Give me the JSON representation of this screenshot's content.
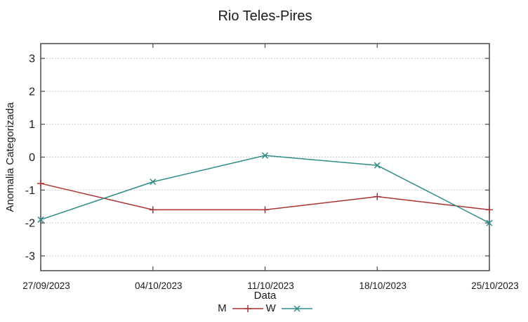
{
  "chart_data": {
    "type": "line",
    "title": "Rio Teles-Pires",
    "xlabel": "Data",
    "ylabel": "Anomalia Categorizada",
    "categories": [
      "27/09/2023",
      "04/10/2023",
      "11/10/2023",
      "18/10/2023",
      "25/10/2023"
    ],
    "series": [
      {
        "name": "M",
        "color": "#ab3232",
        "marker": "plus",
        "values": [
          -0.8,
          -1.6,
          -1.6,
          -1.2,
          -1.6
        ]
      },
      {
        "name": "W",
        "color": "#2e8b88",
        "marker": "cross",
        "values": [
          -1.9,
          -0.75,
          0.05,
          -0.25,
          -2.0
        ]
      }
    ],
    "yticks": [
      3,
      2,
      1,
      0,
      -1,
      -2,
      -3
    ],
    "ylim": [
      -3.45,
      3.45
    ],
    "grid": "horizontal-dotted",
    "legend_position": "bottom-center",
    "colors": {
      "background": "#ffffff",
      "border": "#4a4a4a",
      "gridline": "#b8b8b8",
      "text": "#1a1a1a"
    }
  }
}
